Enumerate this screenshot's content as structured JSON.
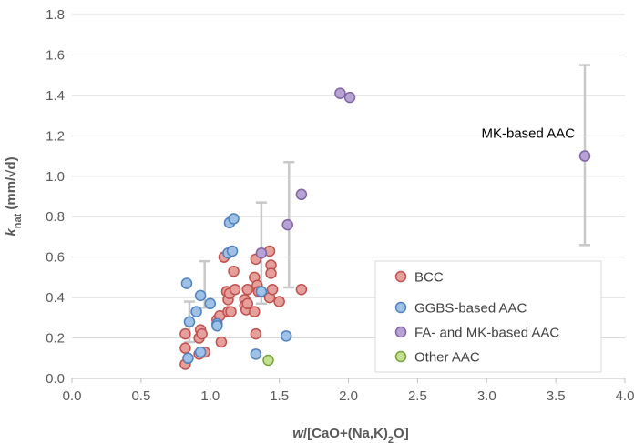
{
  "chart_data": {
    "type": "scatter",
    "xlim": [
      0,
      4
    ],
    "ylim": [
      0,
      1.8
    ],
    "x_ticks": [
      "0.0",
      "0.5",
      "1.0",
      "1.5",
      "2.0",
      "2.5",
      "3.0",
      "3.5",
      "4.0"
    ],
    "y_ticks": [
      "0.0",
      "0.2",
      "0.4",
      "0.6",
      "0.8",
      "1.0",
      "1.2",
      "1.4",
      "1.6",
      "1.8"
    ],
    "xlabel": {
      "italic": "w",
      "before_sub": "/[CaO+(Na,K)",
      "sub": "2",
      "after_sub": "O]"
    },
    "ylabel": {
      "italic": "k",
      "sub": "nat",
      "rest": " (mm/√d)"
    },
    "grid": "horizontal",
    "legend_position": "bottom-right",
    "colors": {
      "grid": "#d9d9d9",
      "axis": "#bfbfbf",
      "error_bar": "#c8c8c8"
    },
    "series": [
      {
        "name": "BCC",
        "color": "#c0504d",
        "fill": "#e6a09c",
        "points": [
          [
            0.82,
            0.07
          ],
          [
            0.82,
            0.15
          ],
          [
            0.82,
            0.22
          ],
          [
            0.92,
            0.12
          ],
          [
            0.92,
            0.2
          ],
          [
            0.93,
            0.24
          ],
          [
            0.94,
            0.22
          ],
          [
            0.96,
            0.13
          ],
          [
            1.05,
            0.29
          ],
          [
            1.07,
            0.31
          ],
          [
            1.08,
            0.18
          ],
          [
            1.1,
            0.6
          ],
          [
            1.12,
            0.43
          ],
          [
            1.13,
            0.39
          ],
          [
            1.14,
            0.42
          ],
          [
            1.13,
            0.33
          ],
          [
            1.15,
            0.33
          ],
          [
            1.17,
            0.53
          ],
          [
            1.18,
            0.44
          ],
          [
            1.25,
            0.39
          ],
          [
            1.25,
            0.36
          ],
          [
            1.26,
            0.34
          ],
          [
            1.27,
            0.37
          ],
          [
            1.27,
            0.44
          ],
          [
            1.32,
            0.5
          ],
          [
            1.33,
            0.59
          ],
          [
            1.32,
            0.33
          ],
          [
            1.34,
            0.46
          ],
          [
            1.35,
            0.43
          ],
          [
            1.33,
            0.22
          ],
          [
            1.43,
            0.63
          ],
          [
            1.43,
            0.4
          ],
          [
            1.44,
            0.56
          ],
          [
            1.44,
            0.52
          ],
          [
            1.45,
            0.44
          ],
          [
            1.5,
            0.38
          ],
          [
            1.66,
            0.44
          ]
        ]
      },
      {
        "name": "GGBS-based AAC",
        "color": "#4f81bd",
        "fill": "#9fc1e6",
        "points": [
          [
            0.83,
            0.47
          ],
          [
            0.84,
            0.1
          ],
          [
            0.85,
            0.28
          ],
          [
            0.9,
            0.33
          ],
          [
            0.93,
            0.13
          ],
          [
            0.93,
            0.41
          ],
          [
            1.0,
            0.37
          ],
          [
            1.05,
            0.27
          ],
          [
            1.05,
            0.26
          ],
          [
            1.13,
            0.62
          ],
          [
            1.14,
            0.77
          ],
          [
            1.16,
            0.63
          ],
          [
            1.17,
            0.79
          ],
          [
            1.33,
            0.12
          ],
          [
            1.37,
            0.43
          ],
          [
            1.55,
            0.21
          ]
        ]
      },
      {
        "name": "FA- and MK-based AAC",
        "color": "#8064a2",
        "fill": "#b7a2d6",
        "points": [
          [
            1.37,
            0.62
          ],
          [
            1.56,
            0.76
          ],
          [
            1.66,
            0.91
          ],
          [
            1.94,
            1.41
          ],
          [
            2.01,
            1.39
          ],
          [
            3.71,
            1.1
          ]
        ]
      },
      {
        "name": "Other AAC",
        "color": "#77a33a",
        "fill": "#c2e08f",
        "points": [
          [
            1.42,
            0.09
          ]
        ]
      }
    ],
    "error_bars": [
      {
        "x": 0.85,
        "low": 0.18,
        "high": 0.38
      },
      {
        "x": 0.96,
        "low": 0.35,
        "high": 0.58
      },
      {
        "x": 1.37,
        "low": 0.37,
        "high": 0.87
      },
      {
        "x": 1.57,
        "low": 0.45,
        "high": 1.07
      },
      {
        "x": 3.71,
        "low": 0.66,
        "high": 1.55
      }
    ],
    "annotations": [
      {
        "text": "MK-based AAC",
        "x": 3.3,
        "y": 1.19
      }
    ]
  }
}
